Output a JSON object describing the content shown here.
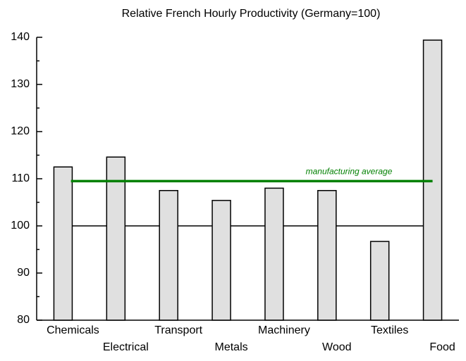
{
  "chart_data": {
    "type": "bar",
    "title": "Relative French Hourly Productivity (Germany=100)",
    "categories": [
      "Chemicals",
      "Electrical",
      "Transport",
      "Metals",
      "Machinery",
      "Wood",
      "Textiles",
      "Food"
    ],
    "values": [
      112.5,
      114.6,
      107.5,
      105.4,
      108,
      107.5,
      96.7,
      139.4
    ],
    "color": "#e0e0e0",
    "ylim": [
      80,
      140
    ],
    "yticks": [
      80,
      90,
      100,
      110,
      120,
      130,
      140
    ],
    "yminorticks": [
      85,
      95,
      105,
      115,
      125,
      135
    ],
    "reference_line": {
      "value": 100,
      "color": "#000000"
    },
    "average_line": {
      "text": "manufacturing average",
      "value": 109.5,
      "color": "#008000"
    }
  }
}
